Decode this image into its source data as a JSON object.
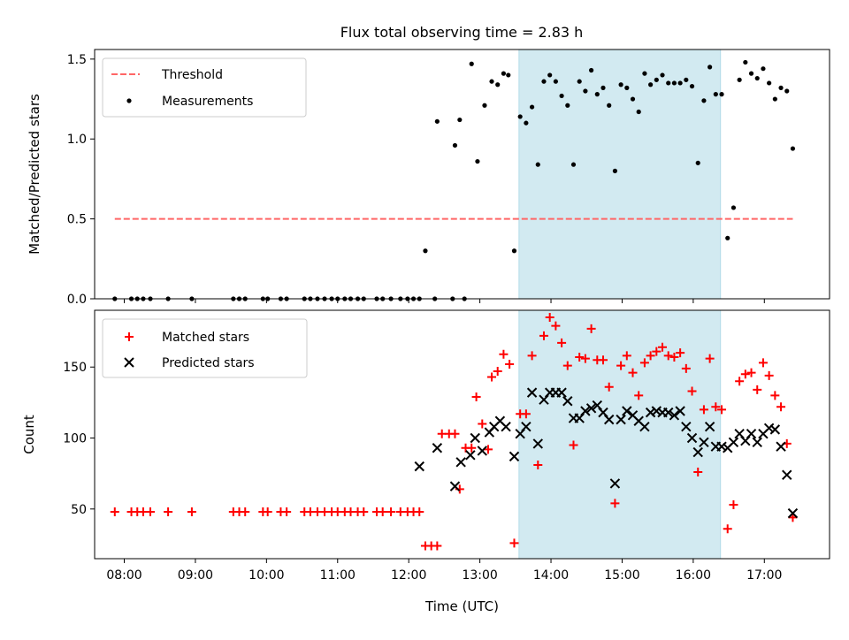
{
  "figure": {
    "title": "Flux total observing time = 2.83 h"
  },
  "chart_data": [
    {
      "type": "scatter",
      "panel": "top",
      "xlabel": "",
      "ylabel": "Matched/Predicted stars",
      "xlim": [
        "07:35",
        "17:55"
      ],
      "ylim": [
        0,
        1.56
      ],
      "yticks": [
        "0.0",
        "0.5",
        "1.0",
        "1.5"
      ],
      "ytick_values": [
        0,
        0.5,
        1.0,
        1.5
      ],
      "shaded_interval": {
        "start": "13:33",
        "end": "16:23",
        "color": "#add8e6"
      },
      "legend_position": "upper left",
      "threshold": {
        "name": "Threshold",
        "value": 0.5,
        "x_start": "07:52",
        "x_end": "17:24",
        "color": "#ff6666"
      },
      "measurements": {
        "name": "Measurements",
        "color": "#000000",
        "points": [
          [
            "07:52",
            0
          ],
          [
            "08:06",
            0
          ],
          [
            "08:11",
            0
          ],
          [
            "08:16",
            0
          ],
          [
            "08:22",
            0
          ],
          [
            "08:37",
            0
          ],
          [
            "08:57",
            0
          ],
          [
            "09:32",
            0
          ],
          [
            "09:37",
            0
          ],
          [
            "09:42",
            0
          ],
          [
            "09:57",
            0
          ],
          [
            "10:01",
            0
          ],
          [
            "10:12",
            0
          ],
          [
            "10:17",
            0
          ],
          [
            "10:32",
            0
          ],
          [
            "10:37",
            0
          ],
          [
            "10:43",
            0
          ],
          [
            "10:49",
            0
          ],
          [
            "10:55",
            0
          ],
          [
            "11:00",
            0
          ],
          [
            "11:06",
            0
          ],
          [
            "11:11",
            0
          ],
          [
            "11:17",
            0
          ],
          [
            "11:22",
            0
          ],
          [
            "11:33",
            0
          ],
          [
            "11:38",
            0
          ],
          [
            "11:45",
            0
          ],
          [
            "11:53",
            0
          ],
          [
            "11:59",
            0
          ],
          [
            "12:04",
            0
          ],
          [
            "12:09",
            0
          ],
          [
            "12:22",
            0
          ],
          [
            "12:37",
            0
          ],
          [
            "12:47",
            0
          ],
          [
            "12:14",
            0.3
          ],
          [
            "12:24",
            1.11
          ],
          [
            "12:39",
            0.96
          ],
          [
            "12:43",
            1.12
          ],
          [
            "12:53",
            1.47
          ],
          [
            "12:58",
            0.86
          ],
          [
            "13:04",
            1.21
          ],
          [
            "13:10",
            1.36
          ],
          [
            "13:15",
            1.34
          ],
          [
            "13:20",
            1.41
          ],
          [
            "13:24",
            1.4
          ],
          [
            "13:29",
            0.3
          ],
          [
            "13:34",
            1.14
          ],
          [
            "13:39",
            1.1
          ],
          [
            "13:44",
            1.2
          ],
          [
            "13:49",
            0.84
          ],
          [
            "13:54",
            1.36
          ],
          [
            "13:59",
            1.4
          ],
          [
            "14:04",
            1.36
          ],
          [
            "14:09",
            1.27
          ],
          [
            "14:14",
            1.21
          ],
          [
            "14:19",
            0.84
          ],
          [
            "14:24",
            1.36
          ],
          [
            "14:29",
            1.3
          ],
          [
            "14:34",
            1.43
          ],
          [
            "14:39",
            1.28
          ],
          [
            "14:44",
            1.32
          ],
          [
            "14:49",
            1.21
          ],
          [
            "14:54",
            0.8
          ],
          [
            "14:59",
            1.34
          ],
          [
            "15:04",
            1.32
          ],
          [
            "15:09",
            1.25
          ],
          [
            "15:14",
            1.17
          ],
          [
            "15:19",
            1.41
          ],
          [
            "15:24",
            1.34
          ],
          [
            "15:29",
            1.37
          ],
          [
            "15:34",
            1.4
          ],
          [
            "15:39",
            1.35
          ],
          [
            "15:44",
            1.35
          ],
          [
            "15:49",
            1.35
          ],
          [
            "15:54",
            1.37
          ],
          [
            "15:59",
            1.33
          ],
          [
            "16:04",
            0.85
          ],
          [
            "16:09",
            1.24
          ],
          [
            "16:14",
            1.45
          ],
          [
            "16:19",
            1.28
          ],
          [
            "16:24",
            1.28
          ],
          [
            "16:29",
            0.38
          ],
          [
            "16:34",
            0.57
          ],
          [
            "16:39",
            1.37
          ],
          [
            "16:44",
            1.48
          ],
          [
            "16:49",
            1.41
          ],
          [
            "16:54",
            1.38
          ],
          [
            "16:59",
            1.44
          ],
          [
            "17:04",
            1.35
          ],
          [
            "17:09",
            1.25
          ],
          [
            "17:14",
            1.32
          ],
          [
            "17:19",
            1.3
          ],
          [
            "17:24",
            0.94
          ]
        ]
      }
    },
    {
      "type": "scatter",
      "panel": "bottom",
      "xlabel": "Time (UTC)",
      "ylabel": "Count",
      "xlim": [
        "07:35",
        "17:55"
      ],
      "ylim": [
        15,
        190
      ],
      "yticks": [
        "50",
        "100",
        "150"
      ],
      "ytick_values": [
        50,
        100,
        150
      ],
      "xticks": [
        "08:00",
        "09:00",
        "10:00",
        "11:00",
        "12:00",
        "13:00",
        "14:00",
        "15:00",
        "16:00",
        "17:00"
      ],
      "shaded_interval": {
        "start": "13:33",
        "end": "16:23",
        "color": "#add8e6"
      },
      "legend_position": "upper left",
      "series": [
        {
          "name": "Matched stars",
          "marker": "plus",
          "color": "#ff0000",
          "points": [
            [
              "07:52",
              48
            ],
            [
              "08:06",
              48
            ],
            [
              "08:11",
              48
            ],
            [
              "08:16",
              48
            ],
            [
              "08:22",
              48
            ],
            [
              "08:37",
              48
            ],
            [
              "08:57",
              48
            ],
            [
              "09:32",
              48
            ],
            [
              "09:37",
              48
            ],
            [
              "09:42",
              48
            ],
            [
              "09:57",
              48
            ],
            [
              "10:01",
              48
            ],
            [
              "10:12",
              48
            ],
            [
              "10:17",
              48
            ],
            [
              "10:32",
              48
            ],
            [
              "10:37",
              48
            ],
            [
              "10:43",
              48
            ],
            [
              "10:49",
              48
            ],
            [
              "10:55",
              48
            ],
            [
              "11:00",
              48
            ],
            [
              "11:06",
              48
            ],
            [
              "11:11",
              48
            ],
            [
              "11:17",
              48
            ],
            [
              "11:22",
              48
            ],
            [
              "11:33",
              48
            ],
            [
              "11:38",
              48
            ],
            [
              "11:45",
              48
            ],
            [
              "11:53",
              48
            ],
            [
              "11:59",
              48
            ],
            [
              "12:04",
              48
            ],
            [
              "12:09",
              48
            ],
            [
              "12:14",
              24
            ],
            [
              "12:19",
              24
            ],
            [
              "12:24",
              24
            ],
            [
              "12:28",
              103
            ],
            [
              "12:34",
              103
            ],
            [
              "12:39",
              103
            ],
            [
              "12:43",
              64
            ],
            [
              "12:48",
              93
            ],
            [
              "12:53",
              93
            ],
            [
              "12:57",
              129
            ],
            [
              "13:02",
              110
            ],
            [
              "13:07",
              92
            ],
            [
              "13:10",
              143
            ],
            [
              "13:15",
              147
            ],
            [
              "13:20",
              159
            ],
            [
              "13:25",
              152
            ],
            [
              "13:29",
              26
            ],
            [
              "13:34",
              117
            ],
            [
              "13:39",
              117
            ],
            [
              "13:44",
              158
            ],
            [
              "13:49",
              81
            ],
            [
              "13:54",
              172
            ],
            [
              "13:59",
              185
            ],
            [
              "14:04",
              179
            ],
            [
              "14:09",
              167
            ],
            [
              "14:14",
              151
            ],
            [
              "14:19",
              95
            ],
            [
              "14:24",
              157
            ],
            [
              "14:29",
              156
            ],
            [
              "14:34",
              177
            ],
            [
              "14:39",
              155
            ],
            [
              "14:44",
              155
            ],
            [
              "14:49",
              136
            ],
            [
              "14:54",
              54
            ],
            [
              "14:59",
              151
            ],
            [
              "15:04",
              158
            ],
            [
              "15:09",
              146
            ],
            [
              "15:14",
              130
            ],
            [
              "15:19",
              153
            ],
            [
              "15:24",
              158
            ],
            [
              "15:29",
              161
            ],
            [
              "15:34",
              164
            ],
            [
              "15:39",
              158
            ],
            [
              "15:44",
              157
            ],
            [
              "15:49",
              160
            ],
            [
              "15:54",
              149
            ],
            [
              "15:59",
              133
            ],
            [
              "16:04",
              76
            ],
            [
              "16:09",
              120
            ],
            [
              "16:14",
              156
            ],
            [
              "16:19",
              122
            ],
            [
              "16:24",
              120
            ],
            [
              "16:29",
              36
            ],
            [
              "16:34",
              53
            ],
            [
              "16:39",
              140
            ],
            [
              "16:44",
              145
            ],
            [
              "16:49",
              146
            ],
            [
              "16:54",
              134
            ],
            [
              "16:59",
              153
            ],
            [
              "17:04",
              144
            ],
            [
              "17:09",
              130
            ],
            [
              "17:14",
              122
            ],
            [
              "17:19",
              96
            ],
            [
              "17:24",
              44
            ]
          ]
        },
        {
          "name": "Predicted stars",
          "marker": "x",
          "color": "#000000",
          "points": [
            [
              "12:09",
              80
            ],
            [
              "12:24",
              93
            ],
            [
              "12:39",
              66
            ],
            [
              "12:44",
              83
            ],
            [
              "12:52",
              88
            ],
            [
              "12:56",
              100
            ],
            [
              "13:02",
              91
            ],
            [
              "13:08",
              104
            ],
            [
              "13:12",
              108
            ],
            [
              "13:17",
              112
            ],
            [
              "13:22",
              108
            ],
            [
              "13:29",
              87
            ],
            [
              "13:34",
              103
            ],
            [
              "13:39",
              108
            ],
            [
              "13:44",
              132
            ],
            [
              "13:49",
              96
            ],
            [
              "13:54",
              127
            ],
            [
              "13:59",
              132
            ],
            [
              "14:04",
              132
            ],
            [
              "14:09",
              132
            ],
            [
              "14:14",
              126
            ],
            [
              "14:19",
              114
            ],
            [
              "14:24",
              114
            ],
            [
              "14:29",
              119
            ],
            [
              "14:34",
              121
            ],
            [
              "14:39",
              123
            ],
            [
              "14:44",
              118
            ],
            [
              "14:49",
              113
            ],
            [
              "14:54",
              68
            ],
            [
              "14:59",
              113
            ],
            [
              "15:04",
              119
            ],
            [
              "15:09",
              116
            ],
            [
              "15:14",
              112
            ],
            [
              "15:19",
              108
            ],
            [
              "15:24",
              118
            ],
            [
              "15:29",
              119
            ],
            [
              "15:34",
              118
            ],
            [
              "15:39",
              118
            ],
            [
              "15:44",
              116
            ],
            [
              "15:49",
              119
            ],
            [
              "15:54",
              108
            ],
            [
              "15:59",
              100
            ],
            [
              "16:04",
              90
            ],
            [
              "16:09",
              97
            ],
            [
              "16:14",
              108
            ],
            [
              "16:19",
              94
            ],
            [
              "16:24",
              94
            ],
            [
              "16:29",
              93
            ],
            [
              "16:34",
              97
            ],
            [
              "16:39",
              103
            ],
            [
              "16:44",
              98
            ],
            [
              "16:49",
              103
            ],
            [
              "16:54",
              97
            ],
            [
              "16:59",
              103
            ],
            [
              "17:04",
              107
            ],
            [
              "17:09",
              106
            ],
            [
              "17:14",
              94
            ],
            [
              "17:19",
              74
            ],
            [
              "17:24",
              47
            ]
          ]
        }
      ]
    }
  ]
}
